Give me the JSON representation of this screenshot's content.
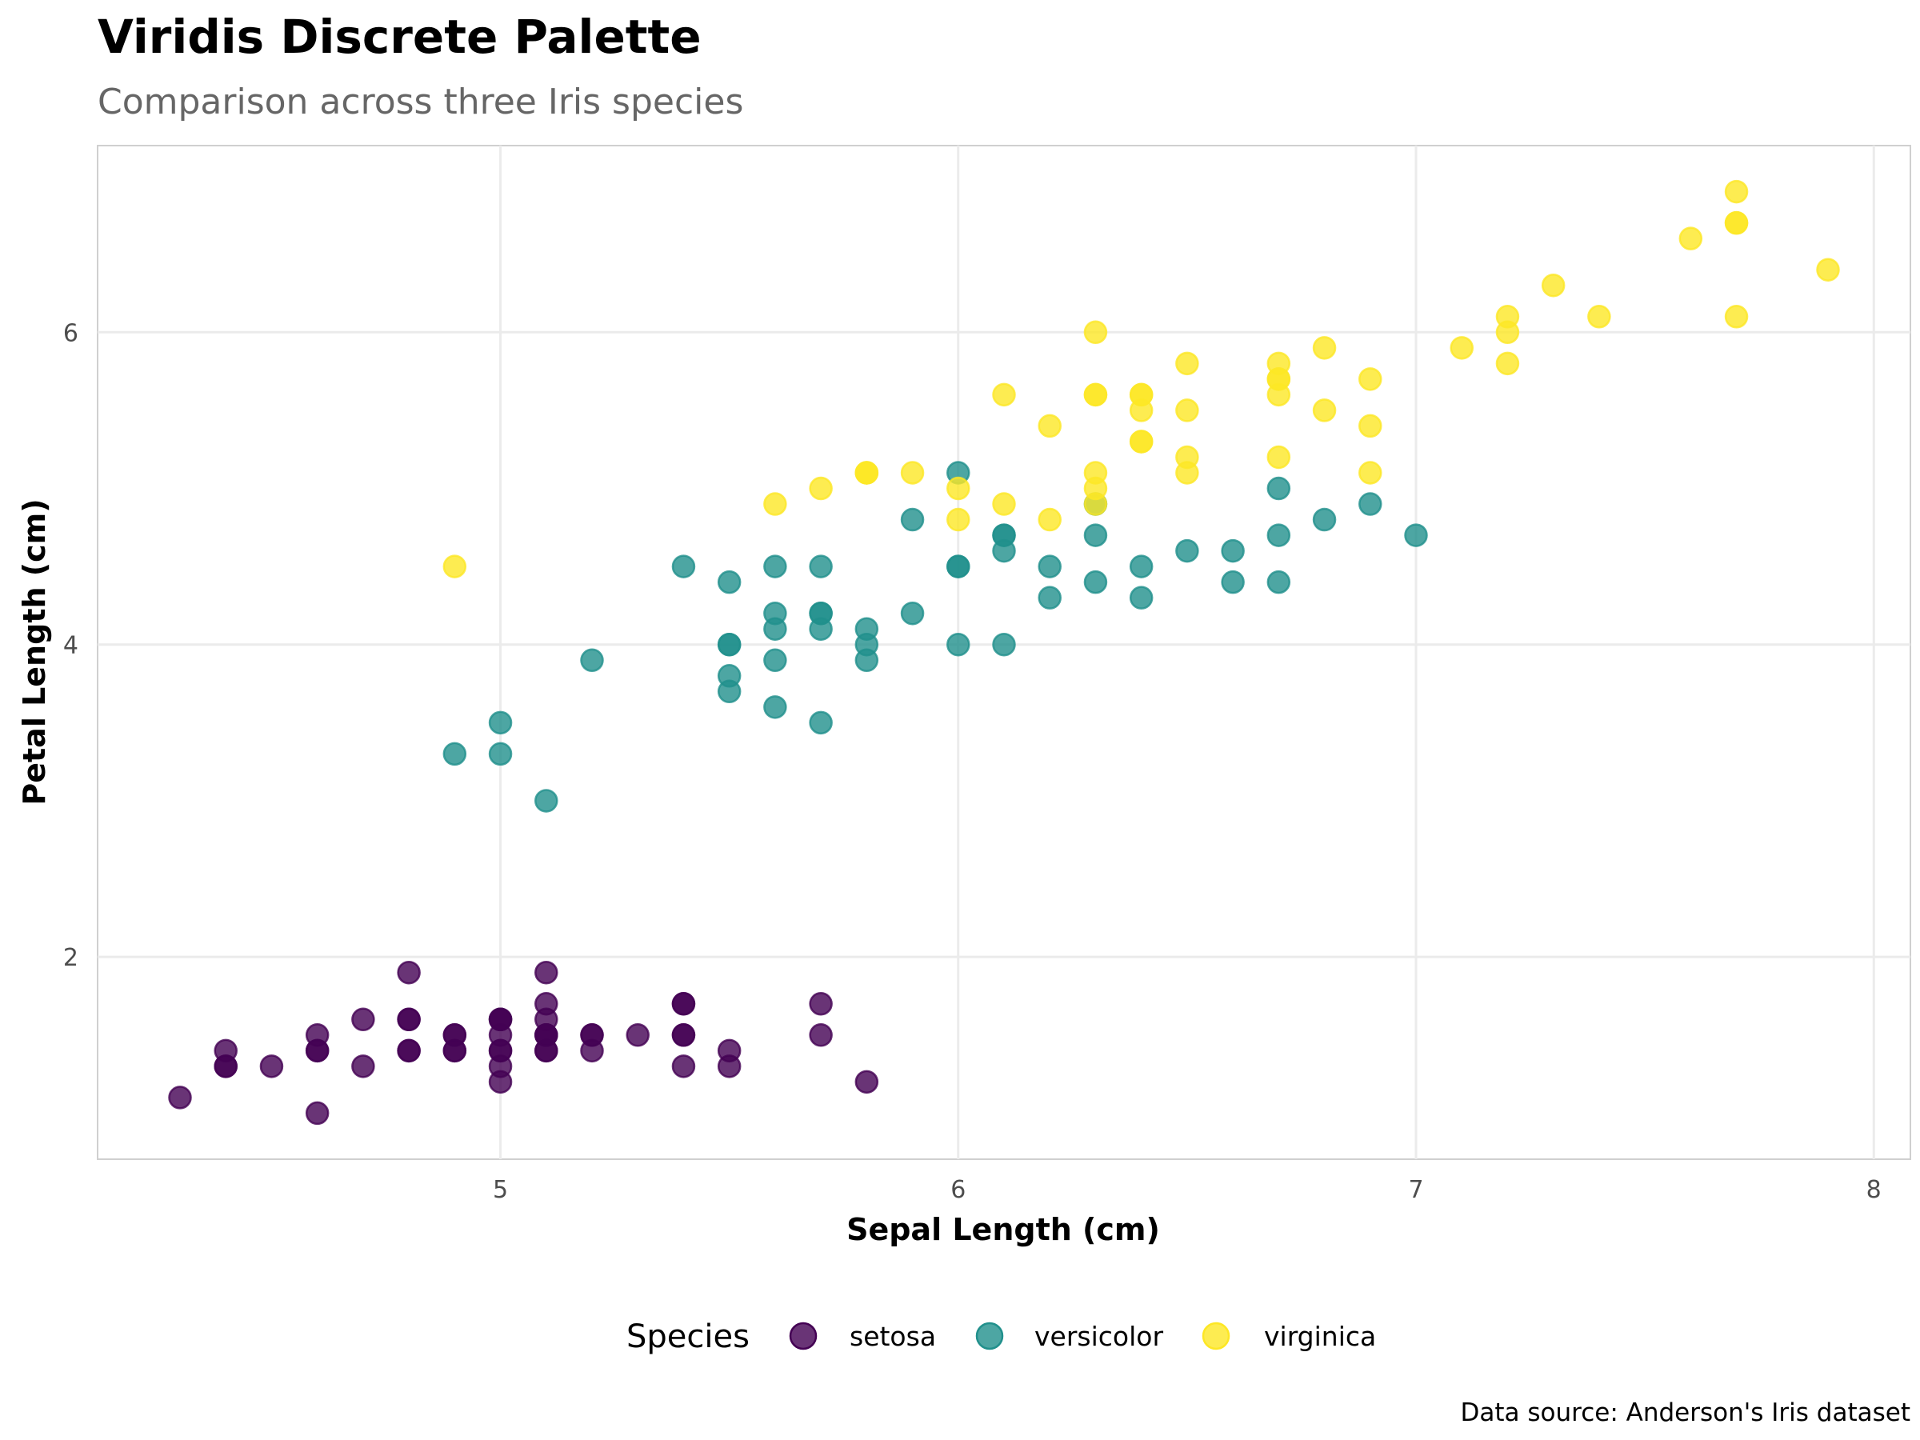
{
  "chart_data": {
    "type": "scatter",
    "title": "Viridis Discrete Palette",
    "subtitle": "Comparison across three Iris species",
    "xlabel": "Sepal Length (cm)",
    "ylabel": "Petal Length (cm)",
    "caption": "Data source: Anderson's Iris dataset",
    "xlim": [
      4.12,
      8.08
    ],
    "ylim": [
      0.705,
      7.195
    ],
    "x_ticks": [
      5,
      6,
      7,
      8
    ],
    "x_tick_labels": [
      "5",
      "6",
      "7",
      "8"
    ],
    "y_ticks": [
      2,
      4,
      6
    ],
    "y_tick_labels": [
      "2",
      "4",
      "6"
    ],
    "grid": true,
    "legend": {
      "title": "Species",
      "position": "bottom",
      "entries": [
        "setosa",
        "versicolor",
        "virginica"
      ]
    },
    "colors": {
      "setosa": "#440154",
      "versicolor": "#21908C",
      "virginica": "#FDE725"
    },
    "point_alpha": 0.8,
    "series": [
      {
        "name": "setosa",
        "x": [
          5.1,
          4.9,
          4.7,
          4.6,
          5.0,
          5.4,
          4.6,
          5.0,
          4.4,
          4.9,
          5.4,
          4.8,
          4.8,
          4.3,
          5.8,
          5.7,
          5.4,
          5.1,
          5.7,
          5.1,
          5.4,
          5.1,
          4.6,
          5.1,
          4.8,
          5.0,
          5.0,
          5.2,
          5.2,
          4.7,
          4.8,
          5.4,
          5.2,
          5.5,
          4.9,
          5.0,
          5.5,
          4.9,
          4.4,
          5.1,
          5.0,
          4.5,
          4.4,
          5.0,
          5.1,
          4.8,
          5.1,
          4.6,
          5.3,
          5.0
        ],
        "y": [
          1.4,
          1.4,
          1.3,
          1.5,
          1.4,
          1.7,
          1.4,
          1.5,
          1.4,
          1.5,
          1.5,
          1.6,
          1.4,
          1.1,
          1.2,
          1.5,
          1.3,
          1.4,
          1.7,
          1.5,
          1.7,
          1.5,
          1.0,
          1.7,
          1.9,
          1.6,
          1.6,
          1.5,
          1.4,
          1.6,
          1.6,
          1.5,
          1.5,
          1.4,
          1.5,
          1.2,
          1.3,
          1.4,
          1.3,
          1.5,
          1.3,
          1.3,
          1.3,
          1.6,
          1.9,
          1.4,
          1.6,
          1.4,
          1.5,
          1.4
        ]
      },
      {
        "name": "versicolor",
        "x": [
          7.0,
          6.4,
          6.9,
          5.5,
          6.5,
          5.7,
          6.3,
          4.9,
          6.6,
          5.2,
          5.0,
          5.9,
          6.0,
          6.1,
          5.6,
          6.7,
          5.6,
          5.8,
          6.2,
          5.6,
          5.9,
          6.1,
          6.3,
          6.1,
          6.4,
          6.6,
          6.8,
          6.7,
          6.0,
          5.7,
          5.5,
          5.5,
          5.8,
          6.0,
          5.4,
          6.0,
          6.7,
          6.3,
          5.6,
          5.5,
          5.5,
          6.1,
          5.8,
          5.0,
          5.6,
          5.7,
          5.7,
          6.2,
          5.1,
          5.7
        ],
        "y": [
          4.7,
          4.5,
          4.9,
          4.0,
          4.6,
          4.5,
          4.7,
          3.3,
          4.6,
          3.9,
          3.5,
          4.2,
          4.0,
          4.7,
          3.6,
          4.4,
          4.5,
          4.1,
          4.5,
          3.9,
          4.8,
          4.0,
          4.9,
          4.7,
          4.3,
          4.4,
          4.8,
          5.0,
          4.5,
          3.5,
          3.8,
          3.7,
          3.9,
          5.1,
          4.5,
          4.5,
          4.7,
          4.4,
          4.1,
          4.0,
          4.4,
          4.6,
          4.0,
          3.3,
          4.2,
          4.2,
          4.2,
          4.3,
          3.0,
          4.1
        ]
      },
      {
        "name": "virginica",
        "x": [
          6.3,
          5.8,
          7.1,
          6.3,
          6.5,
          7.6,
          4.9,
          7.3,
          6.7,
          7.2,
          6.5,
          6.4,
          6.8,
          5.7,
          5.8,
          6.4,
          6.5,
          7.7,
          7.7,
          6.0,
          6.9,
          5.6,
          7.7,
          6.3,
          6.7,
          7.2,
          6.2,
          6.1,
          6.4,
          7.2,
          7.4,
          7.9,
          6.4,
          6.3,
          6.1,
          7.7,
          6.3,
          6.4,
          6.0,
          6.9,
          6.7,
          6.9,
          5.8,
          6.8,
          6.7,
          6.7,
          6.3,
          6.5,
          6.2,
          5.9
        ],
        "y": [
          6.0,
          5.1,
          5.9,
          5.6,
          5.8,
          6.6,
          4.5,
          6.3,
          5.8,
          6.1,
          5.1,
          5.3,
          5.5,
          5.0,
          5.1,
          5.3,
          5.5,
          6.7,
          6.9,
          5.0,
          5.7,
          4.9,
          6.7,
          4.9,
          5.7,
          6.0,
          4.8,
          4.9,
          5.6,
          5.8,
          6.1,
          6.4,
          5.6,
          5.1,
          5.6,
          6.1,
          5.6,
          5.5,
          4.8,
          5.4,
          5.6,
          5.1,
          5.1,
          5.9,
          5.7,
          5.2,
          5.0,
          5.2,
          5.4,
          5.1
        ]
      }
    ]
  }
}
